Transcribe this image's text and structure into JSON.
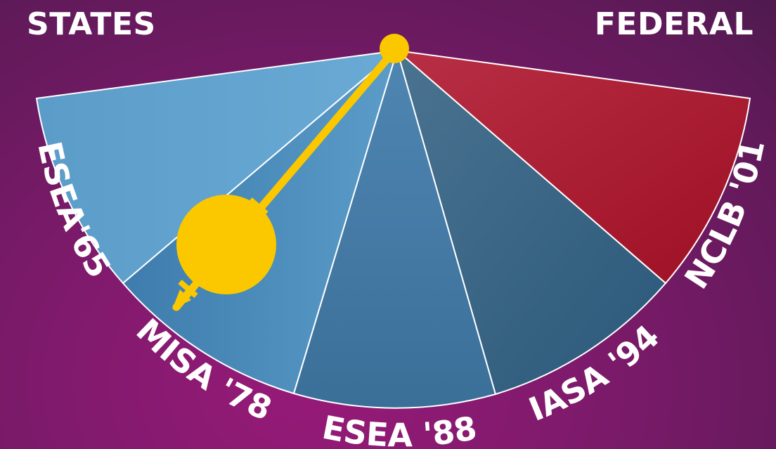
{
  "header": {
    "left_label": "STATES",
    "right_label": "FEDERAL"
  },
  "segments": [
    {
      "label": "ESEA'65",
      "color_outer": "#6aaad5",
      "color_inner": "#5b9cc9"
    },
    {
      "label": "MISA '78",
      "color_outer": "#5b9cc9",
      "color_inner": "#3d7cac"
    },
    {
      "label": "ESEA '88",
      "color_outer": "#4f86b2",
      "color_inner": "#3a6f98"
    },
    {
      "label": "IASA '94",
      "color_outer": "#4a7390",
      "color_inner": "#2b587a"
    },
    {
      "label": "NCLB '01",
      "color_outer": "#b82f45",
      "color_inner": "#9e0f23"
    }
  ],
  "pendulum": {
    "color": "#fbc800",
    "position_label": "MISA '78"
  }
}
